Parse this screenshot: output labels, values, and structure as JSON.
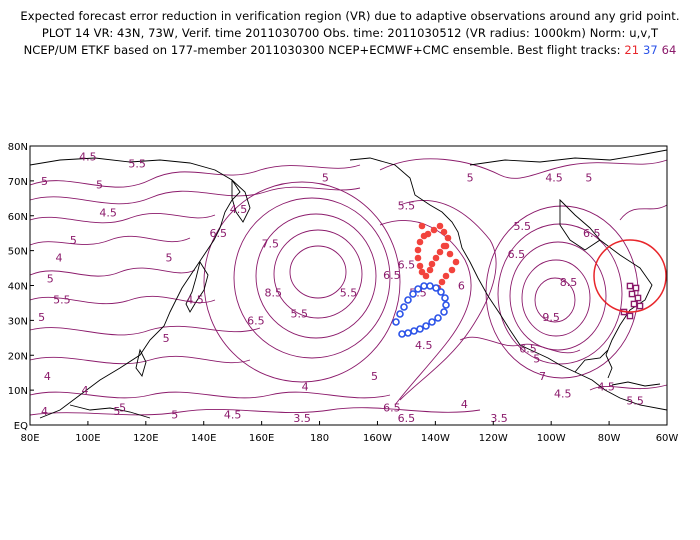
{
  "header": {
    "line1": "Expected forecast error reduction in verification region (VR) due to adaptive observations around any grid point.",
    "line2": "PLOT 14 VR: 43N, 73W, Verif. time 2011030700 Obs. time: 2011030512 (VR radius: 1000km) Norm: u,v,T",
    "line3": "NCEP/UM ETKF based on 177-member 2011030300 NCEP+ECMWF+CMC ensemble. Best flight tracks:",
    "track_a": "21",
    "track_b": "37",
    "track_c": "64"
  },
  "axes": {
    "lat_labels": [
      "80N",
      "70N",
      "60N",
      "50N",
      "40N",
      "30N",
      "20N",
      "10N",
      "EQ"
    ],
    "lon_labels": [
      "80E",
      "100E",
      "120E",
      "140E",
      "160E",
      "180",
      "160W",
      "140W",
      "120W",
      "100W",
      "80W",
      "60W"
    ]
  },
  "contour_labels": [
    {
      "text": "4.5",
      "lon": 100,
      "lat": 77
    },
    {
      "text": "5.5",
      "lon": 117,
      "lat": 75
    },
    {
      "text": "5",
      "lon": 85,
      "lat": 70
    },
    {
      "text": "5",
      "lon": 104,
      "lat": 69
    },
    {
      "text": "4.5",
      "lon": 107,
      "lat": 61
    },
    {
      "text": "5",
      "lon": 95,
      "lat": 53
    },
    {
      "text": "4",
      "lon": 90,
      "lat": 48
    },
    {
      "text": "5",
      "lon": 87,
      "lat": 42
    },
    {
      "text": "5.5",
      "lon": 91,
      "lat": 36
    },
    {
      "text": "5",
      "lon": 84,
      "lat": 31
    },
    {
      "text": "4.5",
      "lon": 137,
      "lat": 36
    },
    {
      "text": "5",
      "lon": 128,
      "lat": 48
    },
    {
      "text": "6.5",
      "lon": 145,
      "lat": 55
    },
    {
      "text": "7.5",
      "lon": 163,
      "lat": 52
    },
    {
      "text": "8.5",
      "lon": 164,
      "lat": 38
    },
    {
      "text": "6.5",
      "lon": 158,
      "lat": 30
    },
    {
      "text": "5.5",
      "lon": 173,
      "lat": 32
    },
    {
      "text": "5",
      "lon": 127,
      "lat": 25
    },
    {
      "text": "4.5",
      "lon": 152,
      "lat": 62
    },
    {
      "text": "5",
      "lon": 182,
      "lat": 71
    },
    {
      "text": "5.5",
      "lon": 190,
      "lat": 38
    },
    {
      "text": "6.5",
      "lon": 210,
      "lat": 46
    },
    {
      "text": "5.5",
      "lon": 214,
      "lat": 38
    },
    {
      "text": "4.5",
      "lon": 216,
      "lat": 23
    },
    {
      "text": "6",
      "lon": 229,
      "lat": 40
    },
    {
      "text": "6.5",
      "lon": 248,
      "lat": 49
    },
    {
      "text": "5.5",
      "lon": 250,
      "lat": 57
    },
    {
      "text": "8.5",
      "lon": 266,
      "lat": 41
    },
    {
      "text": "9.5",
      "lon": 260,
      "lat": 31
    },
    {
      "text": "6.5",
      "lon": 252,
      "lat": 22
    },
    {
      "text": "7",
      "lon": 257,
      "lat": 14
    },
    {
      "text": "5",
      "lon": 232,
      "lat": 71
    },
    {
      "text": "4.5",
      "lon": 261,
      "lat": 71
    },
    {
      "text": "5",
      "lon": 273,
      "lat": 71
    },
    {
      "text": "6.5",
      "lon": 274,
      "lat": 55
    },
    {
      "text": "4.5",
      "lon": 264,
      "lat": 9
    },
    {
      "text": "5.5",
      "lon": 289,
      "lat": 7
    },
    {
      "text": "6.5",
      "lon": 205,
      "lat": 43
    },
    {
      "text": "5.5",
      "lon": 210,
      "lat": 63
    },
    {
      "text": "4",
      "lon": 99,
      "lat": 10
    },
    {
      "text": "5",
      "lon": 112,
      "lat": 5
    },
    {
      "text": "5",
      "lon": 110,
      "lat": 4
    },
    {
      "text": "4",
      "lon": 85,
      "lat": 4
    },
    {
      "text": "4",
      "lon": 86,
      "lat": 14
    },
    {
      "text": "4.5",
      "lon": 150,
      "lat": 3
    },
    {
      "text": "5",
      "lon": 130,
      "lat": 3
    },
    {
      "text": "3.5",
      "lon": 174,
      "lat": 2
    },
    {
      "text": "4",
      "lon": 175,
      "lat": 11
    },
    {
      "text": "5",
      "lon": 199,
      "lat": 14
    },
    {
      "text": "6.5",
      "lon": 205,
      "lat": 5
    },
    {
      "text": "6.5",
      "lon": 210,
      "lat": 2
    },
    {
      "text": "4",
      "lon": 230,
      "lat": 6
    },
    {
      "text": "3.5",
      "lon": 242,
      "lat": 2
    },
    {
      "text": "4.5",
      "lon": 279,
      "lat": 11
    },
    {
      "text": "5",
      "lon": 255,
      "lat": 19
    }
  ],
  "verification_region": {
    "lat": 43,
    "lon": -73
  },
  "colors": {
    "contour": "#8b1a6b",
    "track_a": "#f2433d",
    "track_b": "#2a52e8",
    "track_c": "#8b1a6b",
    "vr_circle": "#e8262b",
    "coast": "#000000"
  }
}
